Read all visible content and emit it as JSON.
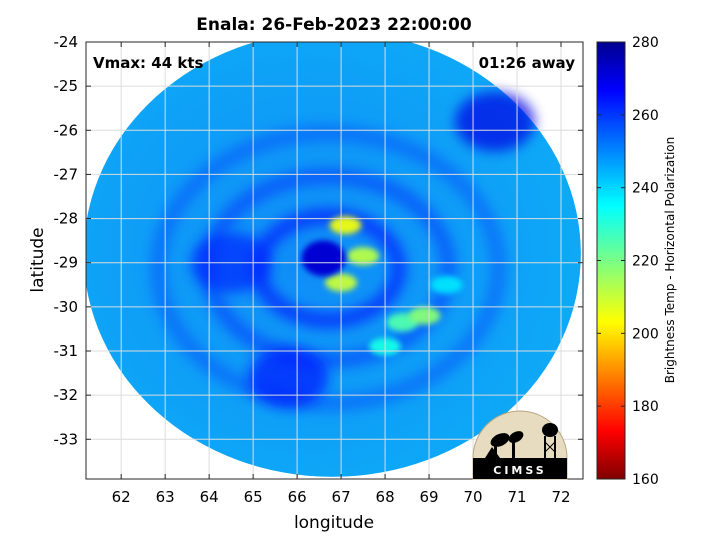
{
  "title": "Enala: 26-Feb-2023 22:00:00",
  "vmax_label": "Vmax: 44 kts",
  "time_label": "01:26 away",
  "xlabel": "longitude",
  "ylabel": "latitude",
  "colorbar": {
    "label": "Brightness Temp - Horizontal Polarization",
    "ticks": [
      "280",
      "260",
      "240",
      "220",
      "200",
      "180",
      "160"
    ],
    "range": [
      160,
      280
    ],
    "colormap": "jet"
  },
  "logo_text": "CIMSS",
  "chart_data": {
    "type": "heatmap",
    "title": "Enala: 26-Feb-2023 22:00:00",
    "xlabel": "longitude",
    "ylabel": "latitude",
    "xlim": [
      61.2,
      72.5
    ],
    "ylim": [
      -33.9,
      -24.0
    ],
    "xticks": [
      "62",
      "63",
      "64",
      "65",
      "66",
      "67",
      "68",
      "69",
      "70",
      "71",
      "72"
    ],
    "yticks": [
      "-24",
      "-25",
      "-26",
      "-27",
      "-28",
      "-29",
      "-30",
      "-31",
      "-32",
      "-33"
    ],
    "grid": true,
    "swath": {
      "center_lon": 66.8,
      "center_lat": -28.8,
      "radius_lon": 5.65,
      "radius_lat": 5.05
    },
    "eye": {
      "lon": 66.6,
      "lat": -28.9,
      "tb": 272
    },
    "background_tb": 245,
    "features": [
      {
        "lon": 67.1,
        "lat": -28.15,
        "tb": 205
      },
      {
        "lon": 67.5,
        "lat": -28.85,
        "tb": 212
      },
      {
        "lon": 67.0,
        "lat": -29.45,
        "tb": 210
      },
      {
        "lon": 68.4,
        "lat": -30.35,
        "tb": 225
      },
      {
        "lon": 68.9,
        "lat": -30.2,
        "tb": 218
      },
      {
        "lon": 69.4,
        "lat": -29.5,
        "tb": 238
      },
      {
        "lon": 68.0,
        "lat": -30.9,
        "tb": 232
      },
      {
        "lon": 64.5,
        "lat": -29.0,
        "tb": 262
      },
      {
        "lon": 65.8,
        "lat": -31.6,
        "tb": 264
      },
      {
        "lon": 70.5,
        "lat": -25.8,
        "tb": 270
      }
    ]
  }
}
